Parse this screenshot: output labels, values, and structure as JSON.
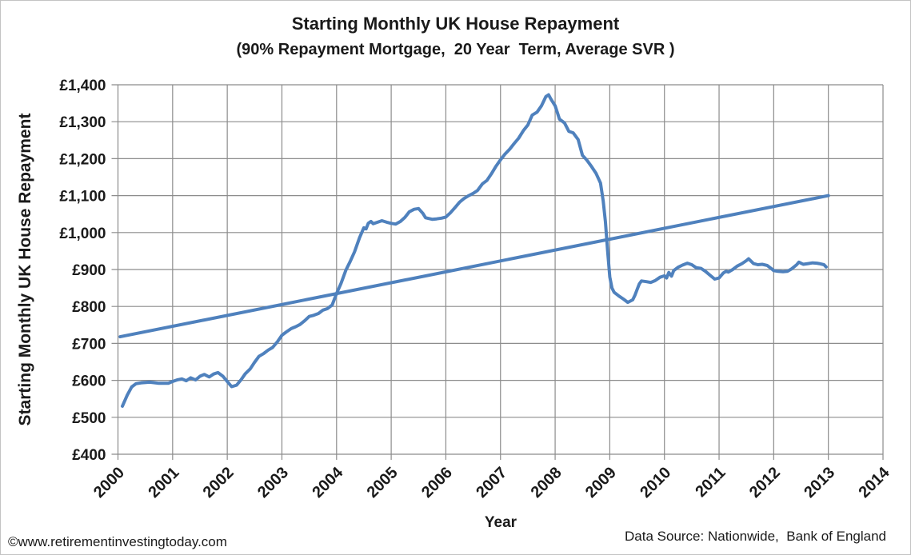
{
  "footer": {
    "copyright": "©www.retirementinvestingtoday.com",
    "data_source": "Data Source: Nationwide,  Bank of England"
  },
  "colors": {
    "series_blue": "#4f81bd",
    "gridline": "#8c8c8c",
    "text": "#1a1a1a",
    "figure_border": "#c3c3c3"
  },
  "chart_data": {
    "type": "line",
    "title": "Starting Monthly UK House Repayment",
    "subtitle": "(90% Repayment Mortgage,  20 Year  Term, Average SVR )",
    "xlabel": "Year",
    "ylabel": "Starting Monthly UK House Repayment",
    "xlim": [
      2000,
      2014
    ],
    "ylim": [
      400,
      1400
    ],
    "grid": true,
    "legend": "none",
    "x_tick_values": [
      2000,
      2001,
      2002,
      2003,
      2004,
      2005,
      2006,
      2007,
      2008,
      2009,
      2010,
      2011,
      2012,
      2013,
      2014
    ],
    "x_tick_labels": [
      "2000",
      "2001",
      "2002",
      "2003",
      "2004",
      "2005",
      "2006",
      "2007",
      "2008",
      "2009",
      "2010",
      "2011",
      "2012",
      "2013",
      "2014"
    ],
    "y_tick_values": [
      400,
      500,
      600,
      700,
      800,
      900,
      1000,
      1100,
      1200,
      1300,
      1400
    ],
    "y_tick_labels": [
      "£400",
      "£500",
      "£600",
      "£700",
      "£800",
      "£900",
      "£1,000",
      "£1,100",
      "£1,200",
      "£1,300",
      "£1,400"
    ],
    "series": [
      {
        "name": "starting-monthly-repayment",
        "color": "#4f81bd",
        "stroke_width": 4,
        "points": [
          [
            2000.08,
            530
          ],
          [
            2000.17,
            560
          ],
          [
            2000.25,
            582
          ],
          [
            2000.33,
            591
          ],
          [
            2000.42,
            593
          ],
          [
            2000.58,
            595
          ],
          [
            2000.75,
            592
          ],
          [
            2000.92,
            592
          ],
          [
            2001.0,
            597
          ],
          [
            2001.08,
            601
          ],
          [
            2001.17,
            604
          ],
          [
            2001.25,
            599
          ],
          [
            2001.33,
            607
          ],
          [
            2001.42,
            601
          ],
          [
            2001.5,
            611
          ],
          [
            2001.58,
            616
          ],
          [
            2001.67,
            609
          ],
          [
            2001.75,
            617
          ],
          [
            2001.83,
            621
          ],
          [
            2001.92,
            611
          ],
          [
            2002.0,
            597
          ],
          [
            2002.08,
            583
          ],
          [
            2002.17,
            587
          ],
          [
            2002.25,
            601
          ],
          [
            2002.33,
            618
          ],
          [
            2002.42,
            631
          ],
          [
            2002.5,
            649
          ],
          [
            2002.58,
            665
          ],
          [
            2002.67,
            673
          ],
          [
            2002.75,
            682
          ],
          [
            2002.83,
            689
          ],
          [
            2002.92,
            705
          ],
          [
            2003.0,
            722
          ],
          [
            2003.08,
            731
          ],
          [
            2003.17,
            740
          ],
          [
            2003.25,
            745
          ],
          [
            2003.33,
            751
          ],
          [
            2003.42,
            762
          ],
          [
            2003.5,
            773
          ],
          [
            2003.58,
            776
          ],
          [
            2003.67,
            781
          ],
          [
            2003.75,
            790
          ],
          [
            2003.83,
            794
          ],
          [
            2003.92,
            804
          ],
          [
            2004.0,
            835
          ],
          [
            2004.08,
            862
          ],
          [
            2004.17,
            898
          ],
          [
            2004.25,
            922
          ],
          [
            2004.33,
            948
          ],
          [
            2004.42,
            986
          ],
          [
            2004.5,
            1013
          ],
          [
            2004.54,
            1010
          ],
          [
            2004.58,
            1025
          ],
          [
            2004.63,
            1030
          ],
          [
            2004.67,
            1024
          ],
          [
            2004.75,
            1028
          ],
          [
            2004.83,
            1032
          ],
          [
            2004.92,
            1028
          ],
          [
            2005.0,
            1025
          ],
          [
            2005.08,
            1023
          ],
          [
            2005.17,
            1030
          ],
          [
            2005.25,
            1041
          ],
          [
            2005.33,
            1056
          ],
          [
            2005.42,
            1063
          ],
          [
            2005.5,
            1065
          ],
          [
            2005.58,
            1052
          ],
          [
            2005.63,
            1040
          ],
          [
            2005.75,
            1036
          ],
          [
            2005.83,
            1037
          ],
          [
            2005.92,
            1039
          ],
          [
            2006.0,
            1042
          ],
          [
            2006.08,
            1053
          ],
          [
            2006.17,
            1068
          ],
          [
            2006.25,
            1082
          ],
          [
            2006.33,
            1092
          ],
          [
            2006.42,
            1100
          ],
          [
            2006.5,
            1106
          ],
          [
            2006.58,
            1114
          ],
          [
            2006.67,
            1132
          ],
          [
            2006.75,
            1141
          ],
          [
            2006.83,
            1158
          ],
          [
            2006.92,
            1180
          ],
          [
            2007.0,
            1197
          ],
          [
            2007.08,
            1212
          ],
          [
            2007.17,
            1226
          ],
          [
            2007.25,
            1241
          ],
          [
            2007.33,
            1255
          ],
          [
            2007.42,
            1276
          ],
          [
            2007.5,
            1291
          ],
          [
            2007.58,
            1318
          ],
          [
            2007.67,
            1326
          ],
          [
            2007.75,
            1343
          ],
          [
            2007.83,
            1368
          ],
          [
            2007.88,
            1373
          ],
          [
            2007.92,
            1362
          ],
          [
            2008.0,
            1343
          ],
          [
            2008.08,
            1307
          ],
          [
            2008.17,
            1297
          ],
          [
            2008.25,
            1274
          ],
          [
            2008.33,
            1270
          ],
          [
            2008.42,
            1252
          ],
          [
            2008.5,
            1209
          ],
          [
            2008.58,
            1196
          ],
          [
            2008.67,
            1178
          ],
          [
            2008.75,
            1160
          ],
          [
            2008.83,
            1134
          ],
          [
            2008.88,
            1085
          ],
          [
            2008.92,
            1030
          ],
          [
            2008.96,
            950
          ],
          [
            2009.0,
            880
          ],
          [
            2009.04,
            850
          ],
          [
            2009.08,
            838
          ],
          [
            2009.17,
            828
          ],
          [
            2009.25,
            820
          ],
          [
            2009.33,
            811
          ],
          [
            2009.42,
            818
          ],
          [
            2009.46,
            830
          ],
          [
            2009.5,
            846
          ],
          [
            2009.54,
            861
          ],
          [
            2009.58,
            869
          ],
          [
            2009.67,
            867
          ],
          [
            2009.75,
            865
          ],
          [
            2009.83,
            870
          ],
          [
            2009.92,
            879
          ],
          [
            2010.0,
            883
          ],
          [
            2010.04,
            877
          ],
          [
            2010.08,
            892
          ],
          [
            2010.13,
            882
          ],
          [
            2010.17,
            897
          ],
          [
            2010.25,
            906
          ],
          [
            2010.33,
            912
          ],
          [
            2010.42,
            917
          ],
          [
            2010.5,
            913
          ],
          [
            2010.58,
            905
          ],
          [
            2010.67,
            903
          ],
          [
            2010.75,
            895
          ],
          [
            2010.83,
            885
          ],
          [
            2010.92,
            874
          ],
          [
            2011.0,
            877
          ],
          [
            2011.08,
            891
          ],
          [
            2011.13,
            895
          ],
          [
            2011.17,
            893
          ],
          [
            2011.25,
            900
          ],
          [
            2011.33,
            909
          ],
          [
            2011.42,
            916
          ],
          [
            2011.5,
            924
          ],
          [
            2011.54,
            929
          ],
          [
            2011.63,
            916
          ],
          [
            2011.71,
            913
          ],
          [
            2011.79,
            914
          ],
          [
            2011.88,
            911
          ],
          [
            2011.96,
            902
          ],
          [
            2012.0,
            897
          ],
          [
            2012.08,
            895
          ],
          [
            2012.17,
            894
          ],
          [
            2012.25,
            895
          ],
          [
            2012.33,
            902
          ],
          [
            2012.42,
            913
          ],
          [
            2012.46,
            920
          ],
          [
            2012.54,
            914
          ],
          [
            2012.63,
            916
          ],
          [
            2012.71,
            918
          ],
          [
            2012.79,
            917
          ],
          [
            2012.83,
            916
          ],
          [
            2012.92,
            913
          ],
          [
            2012.96,
            907
          ]
        ]
      },
      {
        "name": "linear-trend",
        "color": "#4f81bd",
        "stroke_width": 4,
        "points": [
          [
            2000.04,
            718
          ],
          [
            2013.0,
            1100
          ]
        ]
      }
    ]
  }
}
